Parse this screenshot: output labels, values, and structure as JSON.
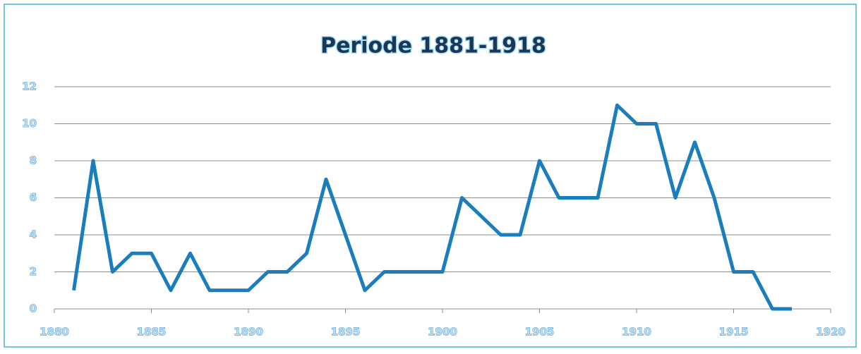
{
  "chart_data": {
    "type": "line",
    "title": "Periode 1881-1918",
    "x": [
      1881,
      1882,
      1883,
      1884,
      1885,
      1886,
      1887,
      1888,
      1889,
      1890,
      1891,
      1892,
      1893,
      1894,
      1895,
      1896,
      1897,
      1898,
      1899,
      1900,
      1901,
      1902,
      1903,
      1904,
      1905,
      1906,
      1907,
      1908,
      1909,
      1910,
      1911,
      1912,
      1913,
      1914,
      1915,
      1916,
      1917,
      1918
    ],
    "values": [
      1,
      8,
      2,
      3,
      3,
      1,
      3,
      1,
      1,
      1,
      2,
      2,
      3,
      7,
      4,
      1,
      2,
      2,
      2,
      2,
      6,
      5,
      4,
      4,
      8,
      6,
      6,
      6,
      11,
      10,
      10,
      6,
      9,
      6,
      2,
      2,
      0,
      0
    ],
    "color": "#1a7dbd",
    "xlim": [
      1880,
      1920
    ],
    "xticks": [
      1880,
      1885,
      1890,
      1895,
      1900,
      1905,
      1910,
      1915,
      1920
    ],
    "ylim": [
      0,
      12
    ],
    "yticks": [
      0,
      2,
      4,
      6,
      8,
      10,
      12
    ],
    "grid": true
  }
}
